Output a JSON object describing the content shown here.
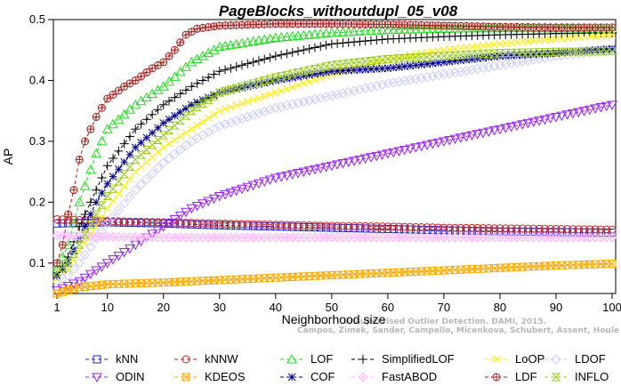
{
  "chart_data": {
    "type": "line",
    "title": "PageBlocks_withoutdupl_05_v08",
    "xlabel": "Neighborhood size",
    "ylabel": "AP",
    "xlim": [
      1,
      100
    ],
    "ylim": [
      0.05,
      0.5
    ],
    "xticks": [
      1,
      10,
      20,
      30,
      40,
      50,
      60,
      70,
      80,
      90,
      100
    ],
    "yticks": [
      0.1,
      0.2,
      0.3,
      0.4,
      0.5
    ],
    "grid": false,
    "legend_position": "bottom",
    "watermark": [
      "Unsupervised Outlier Detection. DAMI, 2015.",
      "Campos, Zimek, Sander, Campello, Micenkova, Schubert, Assent, Houle"
    ],
    "series": [
      {
        "name": "kNN",
        "color": "#2222cc",
        "marker": "square",
        "line": "dash",
        "points": [
          [
            1,
            0.165
          ],
          [
            10,
            0.167
          ],
          [
            20,
            0.165
          ],
          [
            30,
            0.162
          ],
          [
            40,
            0.16
          ],
          [
            50,
            0.158
          ],
          [
            60,
            0.156
          ],
          [
            70,
            0.154
          ],
          [
            80,
            0.152
          ],
          [
            90,
            0.151
          ],
          [
            100,
            0.15
          ]
        ]
      },
      {
        "name": "kNNW",
        "color": "#cc2222",
        "marker": "circle",
        "line": "dash",
        "points": [
          [
            1,
            0.172
          ],
          [
            10,
            0.169
          ],
          [
            20,
            0.167
          ],
          [
            30,
            0.165
          ],
          [
            40,
            0.163
          ],
          [
            50,
            0.161
          ],
          [
            60,
            0.16
          ],
          [
            70,
            0.158
          ],
          [
            80,
            0.157
          ],
          [
            90,
            0.156
          ],
          [
            100,
            0.155
          ]
        ]
      },
      {
        "name": "LOF",
        "color": "#22dd22",
        "marker": "triangle-up",
        "line": "dash",
        "points": [
          [
            1,
            0.09
          ],
          [
            3,
            0.13
          ],
          [
            5,
            0.2
          ],
          [
            8,
            0.28
          ],
          [
            10,
            0.32
          ],
          [
            15,
            0.36
          ],
          [
            20,
            0.39
          ],
          [
            25,
            0.43
          ],
          [
            30,
            0.455
          ],
          [
            40,
            0.47
          ],
          [
            50,
            0.478
          ],
          [
            60,
            0.483
          ],
          [
            70,
            0.485
          ],
          [
            80,
            0.486
          ],
          [
            90,
            0.486
          ],
          [
            100,
            0.484
          ]
        ]
      },
      {
        "name": "SimplifiedLOF",
        "color": "#000000",
        "marker": "plus",
        "line": "dash",
        "points": [
          [
            1,
            0.08
          ],
          [
            3,
            0.11
          ],
          [
            5,
            0.16
          ],
          [
            8,
            0.22
          ],
          [
            10,
            0.26
          ],
          [
            15,
            0.32
          ],
          [
            20,
            0.36
          ],
          [
            25,
            0.39
          ],
          [
            30,
            0.415
          ],
          [
            40,
            0.44
          ],
          [
            50,
            0.46
          ],
          [
            60,
            0.468
          ],
          [
            70,
            0.472
          ],
          [
            80,
            0.475
          ],
          [
            90,
            0.477
          ],
          [
            100,
            0.478
          ]
        ]
      },
      {
        "name": "LoOP",
        "color": "#ffee00",
        "marker": "cross",
        "line": "dash",
        "points": [
          [
            1,
            0.075
          ],
          [
            3,
            0.09
          ],
          [
            5,
            0.12
          ],
          [
            8,
            0.16
          ],
          [
            10,
            0.19
          ],
          [
            15,
            0.25
          ],
          [
            20,
            0.29
          ],
          [
            25,
            0.32
          ],
          [
            30,
            0.35
          ],
          [
            40,
            0.38
          ],
          [
            50,
            0.41
          ],
          [
            60,
            0.435
          ],
          [
            70,
            0.45
          ],
          [
            80,
            0.46
          ],
          [
            90,
            0.468
          ],
          [
            100,
            0.475
          ]
        ]
      },
      {
        "name": "LDOF",
        "color": "#ccccff",
        "marker": "diamond",
        "line": "dash",
        "points": [
          [
            1,
            0.07
          ],
          [
            3,
            0.08
          ],
          [
            5,
            0.1
          ],
          [
            8,
            0.14
          ],
          [
            10,
            0.165
          ],
          [
            15,
            0.22
          ],
          [
            20,
            0.265
          ],
          [
            25,
            0.3
          ],
          [
            30,
            0.325
          ],
          [
            40,
            0.355
          ],
          [
            50,
            0.375
          ],
          [
            60,
            0.395
          ],
          [
            70,
            0.41
          ],
          [
            80,
            0.425
          ],
          [
            90,
            0.44
          ],
          [
            100,
            0.45
          ]
        ]
      },
      {
        "name": "ODIN",
        "color": "#9922ee",
        "marker": "triangle-down",
        "line": "dash",
        "points": [
          [
            1,
            0.055
          ],
          [
            5,
            0.07
          ],
          [
            10,
            0.1
          ],
          [
            15,
            0.13
          ],
          [
            20,
            0.16
          ],
          [
            25,
            0.19
          ],
          [
            30,
            0.21
          ],
          [
            40,
            0.24
          ],
          [
            50,
            0.26
          ],
          [
            60,
            0.28
          ],
          [
            70,
            0.3
          ],
          [
            80,
            0.32
          ],
          [
            90,
            0.34
          ],
          [
            100,
            0.36
          ]
        ]
      },
      {
        "name": "KDEOS",
        "color": "#ffaa00",
        "marker": "square-x",
        "line": "dash",
        "points": [
          [
            1,
            0.05
          ],
          [
            5,
            0.06
          ],
          [
            10,
            0.065
          ],
          [
            20,
            0.068
          ],
          [
            30,
            0.072
          ],
          [
            40,
            0.076
          ],
          [
            50,
            0.08
          ],
          [
            60,
            0.084
          ],
          [
            70,
            0.088
          ],
          [
            80,
            0.092
          ],
          [
            90,
            0.096
          ],
          [
            100,
            0.099
          ]
        ]
      },
      {
        "name": "COF",
        "color": "#000088",
        "marker": "star",
        "line": "dash",
        "points": [
          [
            1,
            0.08
          ],
          [
            3,
            0.1
          ],
          [
            5,
            0.14
          ],
          [
            8,
            0.2
          ],
          [
            10,
            0.23
          ],
          [
            15,
            0.29
          ],
          [
            20,
            0.33
          ],
          [
            25,
            0.36
          ],
          [
            30,
            0.38
          ],
          [
            40,
            0.4
          ],
          [
            50,
            0.415
          ],
          [
            60,
            0.42
          ],
          [
            70,
            0.43
          ],
          [
            80,
            0.44
          ],
          [
            90,
            0.445
          ],
          [
            100,
            0.452
          ]
        ]
      },
      {
        "name": "FastABOD",
        "color": "#ffbbff",
        "marker": "diamond-plus",
        "line": "dash",
        "points": [
          [
            1,
            0.145
          ],
          [
            10,
            0.143
          ],
          [
            20,
            0.142
          ],
          [
            30,
            0.142
          ],
          [
            40,
            0.142
          ],
          [
            50,
            0.142
          ],
          [
            60,
            0.142
          ],
          [
            70,
            0.142
          ],
          [
            80,
            0.142
          ],
          [
            90,
            0.142
          ],
          [
            100,
            0.142
          ]
        ]
      },
      {
        "name": "LDF",
        "color": "#aa2222",
        "marker": "circle-plus",
        "line": "dash",
        "points": [
          [
            1,
            0.1
          ],
          [
            2,
            0.13
          ],
          [
            3,
            0.18
          ],
          [
            4,
            0.22
          ],
          [
            5,
            0.27
          ],
          [
            6,
            0.3
          ],
          [
            7,
            0.32
          ],
          [
            8,
            0.34
          ],
          [
            9,
            0.355
          ],
          [
            10,
            0.37
          ],
          [
            13,
            0.39
          ],
          [
            15,
            0.4
          ],
          [
            18,
            0.42
          ],
          [
            20,
            0.43
          ],
          [
            22,
            0.45
          ],
          [
            24,
            0.475
          ],
          [
            26,
            0.485
          ],
          [
            30,
            0.49
          ],
          [
            40,
            0.493
          ],
          [
            50,
            0.493
          ],
          [
            60,
            0.492
          ],
          [
            70,
            0.49
          ],
          [
            80,
            0.488
          ],
          [
            90,
            0.487
          ],
          [
            100,
            0.487
          ]
        ]
      },
      {
        "name": "INFLO",
        "color": "#99cc22",
        "marker": "hourglass",
        "line": "dash",
        "points": [
          [
            1,
            0.085
          ],
          [
            3,
            0.1
          ],
          [
            5,
            0.13
          ],
          [
            8,
            0.18
          ],
          [
            10,
            0.21
          ],
          [
            15,
            0.27
          ],
          [
            20,
            0.31
          ],
          [
            25,
            0.35
          ],
          [
            30,
            0.38
          ],
          [
            40,
            0.405
          ],
          [
            50,
            0.425
          ],
          [
            60,
            0.435
          ],
          [
            70,
            0.44
          ],
          [
            80,
            0.445
          ],
          [
            90,
            0.447
          ],
          [
            100,
            0.448
          ]
        ]
      }
    ],
    "legend_rows": [
      [
        "kNN",
        "kNNW",
        "LOF",
        "SimplifiedLOF",
        "LoOP",
        "LDOF"
      ],
      [
        "ODIN",
        "KDEOS",
        "COF",
        "FastABOD",
        "LDF",
        "INFLO"
      ]
    ]
  }
}
